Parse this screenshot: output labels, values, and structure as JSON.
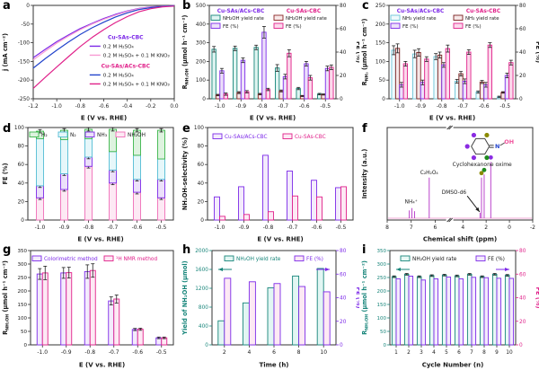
{
  "panel_labels": [
    "a",
    "b",
    "c",
    "d",
    "e",
    "f",
    "g",
    "h",
    "i"
  ],
  "colors": {
    "purple": "#7d2ae8",
    "magenta": "#e0218a",
    "teal": "#17857a",
    "maroon": "#8b2525",
    "blue": "#2244cc",
    "light_pink": "#f79ad3",
    "cyan": "#52bcd4",
    "green": "#3bb54a",
    "pink_bar": "#f06eb8",
    "spectrum_line": "#bb44cc",
    "baseline_pink": "#f2a7d6",
    "dot_olive": "#8a8a00",
    "dot_green": "#1e8a1e",
    "dot_purple": "#8a2be2",
    "oh_pink": "#f0529c"
  },
  "chart_data": [
    {
      "panel": "a",
      "type": "line",
      "xlabel": "E (V vs. RHE)",
      "ylabel": "j (mA cm⁻²)",
      "xlim": [
        -1.2,
        0
      ],
      "ylim": [
        -250,
        0
      ],
      "xticks": [
        -1.2,
        -1.0,
        -0.8,
        -0.6,
        -0.4,
        -0.2,
        0.0
      ],
      "yticks": [
        0,
        -50,
        -100,
        -150,
        -200,
        -250
      ],
      "x_start": -1.2,
      "x_step": 0.1,
      "legend": [
        {
          "title": "Cu-SAs-CBC",
          "title_color": "#7d2ae8",
          "items": [
            {
              "label": "0.2 M H₂SO₄",
              "color": "#7d2ae8"
            },
            {
              "label": "0.2 M H₂SO₄ + 0.1 M KNO₃",
              "color": "#f79ad3"
            }
          ]
        },
        {
          "title": "Cu-SAs/ACs-CBC",
          "title_color": "#e0218a",
          "items": [
            {
              "label": "0.2 M H₂SO₄",
              "color": "#2244cc"
            },
            {
              "label": "0.2 M H₂SO₄ + 0.1 M KNO₃",
              "color": "#e0218a"
            }
          ]
        }
      ],
      "series": [
        {
          "name": "Cu-SAs-CBC 0.2 M H₂SO₄",
          "color": "#7d2ae8",
          "values": [
            -140,
            -118,
            -97,
            -79,
            -62,
            -48,
            -35,
            -24,
            -15,
            -8,
            -4,
            -2,
            -1
          ]
        },
        {
          "name": "Cu-SAs-CBC 0.2 M H₂SO₄ + 0.1 M KNO₃",
          "color": "#f79ad3",
          "values": [
            -146,
            -123,
            -101,
            -82,
            -65,
            -50,
            -37,
            -26,
            -16,
            -9,
            -5,
            -2,
            -1
          ]
        },
        {
          "name": "Cu-SAs/ACs-CBC 0.2 M H₂SO₄",
          "color": "#2244cc",
          "values": [
            -168,
            -143,
            -120,
            -98,
            -78,
            -60,
            -45,
            -31,
            -20,
            -11,
            -6,
            -3,
            -1
          ]
        },
        {
          "name": "Cu-SAs/ACs-CBC 0.2 M H₂SO₄ + 0.1 M KNO₃",
          "color": "#e0218a",
          "values": [
            -222,
            -193,
            -165,
            -137,
            -110,
            -86,
            -65,
            -46,
            -30,
            -17,
            -9,
            -4,
            -2
          ]
        }
      ]
    },
    {
      "panel": "b",
      "type": "bars",
      "xlabel": "E (V vs. RHE)",
      "ylabel": "R{NH₂OH} (µmol h⁻¹ cm⁻²)",
      "y2label": "FE (%)",
      "ylim": [
        0,
        500
      ],
      "yticks": [
        0,
        100,
        200,
        300,
        400,
        500
      ],
      "y2lim": [
        0,
        80
      ],
      "y2ticks": [
        0,
        20,
        40,
        60,
        80
      ],
      "categories": [
        "-1.0",
        "-0.9",
        "-0.8",
        "-0.7",
        "-0.6",
        "-0.5"
      ],
      "legend_cols": [
        {
          "title": "Cu-SAs/ACs-CBC",
          "title_color": "#7d2ae8",
          "items": [
            {
              "label": "NH₂OH yield rate",
              "stroke": "#17857a",
              "fill": "#dff4f1"
            },
            {
              "label": "FE (%)",
              "stroke": "#7d2ae8",
              "fill": "#ece0fa"
            }
          ]
        },
        {
          "title": "Cu-SAs-CBC",
          "title_color": "#e0218a",
          "items": [
            {
              "label": "NH₂OH yield rate",
              "stroke": "#8b2525",
              "fill": "#f8e8e8"
            },
            {
              "label": "FE (%)",
              "stroke": "#e0218a",
              "fill": "#fcd9ec"
            }
          ]
        }
      ],
      "series": [
        {
          "name": "Cu-SAs/ACs-CBC NH₂OH yield rate",
          "axis": "left",
          "stroke": "#17857a",
          "fill": "#dff4f1",
          "values": [
            265,
            270,
            275,
            165,
            55,
            25
          ],
          "errors": [
            15,
            12,
            12,
            18,
            6,
            4
          ]
        },
        {
          "name": "Cu-SAs-CBC NH₂OH yield rate",
          "axis": "left",
          "stroke": "#8b2525",
          "fill": "#f8e8e8",
          "values": [
            20,
            33,
            25,
            42,
            15,
            23
          ],
          "errors": [
            4,
            5,
            4,
            5,
            3,
            3
          ]
        },
        {
          "name": "Cu-SAs/ACs-CBC FE (%)",
          "axis": "right",
          "stroke": "#7d2ae8",
          "fill": "#ece0fa",
          "values": [
            24,
            33,
            57,
            19,
            30,
            26
          ],
          "errors": [
            2,
            2,
            5,
            2,
            2,
            2
          ]
        },
        {
          "name": "Cu-SAs-CBC FE (%)",
          "axis": "right",
          "stroke": "#e0218a",
          "fill": "#fcd9ec",
          "values": [
            4,
            6,
            8,
            39,
            18,
            27
          ],
          "errors": [
            1,
            1,
            1,
            3,
            2,
            2
          ]
        }
      ]
    },
    {
      "panel": "c",
      "type": "bars",
      "xlabel": "E (V vs. RHE)",
      "ylabel": "R{NH₃} (µmol h⁻¹ cm⁻²)",
      "y2label": "FE (%)",
      "ylim": [
        0,
        250
      ],
      "yticks": [
        0,
        50,
        100,
        150,
        200,
        250
      ],
      "y2lim": [
        0,
        80
      ],
      "y2ticks": [
        0,
        20,
        40,
        60,
        80
      ],
      "categories": [
        "-1.0",
        "-0.9",
        "-0.8",
        "-0.7",
        "-0.6",
        "-0.5"
      ],
      "legend_cols": [
        {
          "title": "Cu-SAs/ACs-CBC",
          "title_color": "#7d2ae8",
          "items": [
            {
              "label": "NH₃ yield rate",
              "stroke": "#6cc5d8",
              "fill": "#f0fafc"
            },
            {
              "label": "FE (%)",
              "stroke": "#7d2ae8",
              "fill": "#ece0fa"
            }
          ]
        },
        {
          "title": "Cu-SAs-CBC",
          "title_color": "#e0218a",
          "items": [
            {
              "label": "NH₃ yield rate",
              "stroke": "#7a1f1f",
              "fill": "#f6e7e7"
            },
            {
              "label": "FE (%)",
              "stroke": "#e0218a",
              "fill": "#fcd9ec"
            }
          ]
        }
      ],
      "series": [
        {
          "name": "Cu-SAs/ACs-CBC NH₃ yield rate",
          "axis": "left",
          "stroke": "#6cc5d8",
          "fill": "#f0fafc",
          "values": [
            130,
            120,
            113,
            47,
            18,
            5
          ],
          "errors": [
            12,
            10,
            8,
            5,
            3,
            2
          ]
        },
        {
          "name": "Cu-SAs-CBC NH₃ yield rate",
          "axis": "left",
          "stroke": "#7a1f1f",
          "fill": "#f6e7e7",
          "values": [
            135,
            124,
            117,
            67,
            45,
            17
          ],
          "errors": [
            12,
            10,
            8,
            6,
            4,
            2
          ]
        },
        {
          "name": "Cu-SAs/ACs-CBC FE (%)",
          "axis": "right",
          "stroke": "#7d2ae8",
          "fill": "#ece0fa",
          "values": [
            12,
            14,
            29,
            15,
            12,
            20
          ],
          "errors": [
            2,
            2,
            2,
            2,
            2,
            2
          ]
        },
        {
          "name": "Cu-SAs-CBC FE (%)",
          "axis": "right",
          "stroke": "#e0218a",
          "fill": "#fcd9ec",
          "values": [
            30,
            34,
            43,
            40,
            46,
            31
          ],
          "errors": [
            2,
            2,
            3,
            2,
            2,
            2
          ]
        }
      ]
    },
    {
      "panel": "d",
      "type": "stacked",
      "xlabel": "E (V vs. RHE)",
      "ylabel": "FE (%)",
      "ylim": [
        0,
        100
      ],
      "yticks": [
        0,
        20,
        40,
        60,
        80,
        100
      ],
      "categories": [
        "-1.0",
        "-0.9",
        "-0.8",
        "-0.7",
        "-0.6",
        "-0.5"
      ],
      "legend_row": [
        {
          "label": "H₂",
          "stroke": "#3bb54a",
          "fill": "#def3df"
        },
        {
          "label": "N₂",
          "stroke": "#52bcd4",
          "fill": "#e6f7fa"
        },
        {
          "label": "NH₃",
          "stroke": "#7d2ae8",
          "fill": "#ece0fa"
        },
        {
          "label": "NH₂OH",
          "stroke": "#f06eb8",
          "fill": "#fde9f4"
        }
      ],
      "series": [
        {
          "name": "NH₂OH",
          "stroke": "#f06eb8",
          "fill": "#fde9f4",
          "values": [
            24,
            33,
            58,
            40,
            30,
            24
          ]
        },
        {
          "name": "NH₃",
          "stroke": "#7d2ae8",
          "fill": "#ece0fa",
          "values": [
            13,
            17,
            10,
            14,
            14,
            20
          ]
        },
        {
          "name": "N₂",
          "stroke": "#52bcd4",
          "fill": "#e6f7fa",
          "values": [
            51,
            37,
            20,
            20,
            26,
            22
          ]
        },
        {
          "name": "H₂",
          "stroke": "#3bb54a",
          "fill": "#def3df",
          "values": [
            8,
            10,
            10,
            24,
            27,
            31
          ]
        }
      ]
    },
    {
      "panel": "e",
      "type": "bars",
      "xlabel": "E (V vs. RHE)",
      "ylabel": "NH₂OH-selectivity (%)",
      "ylim": [
        0,
        100
      ],
      "yticks": [
        0,
        20,
        40,
        60,
        80,
        100
      ],
      "categories": [
        "-1.0",
        "-0.9",
        "-0.8",
        "-0.7",
        "-0.6",
        "-0.5"
      ],
      "legend_row": [
        {
          "label": "Cu-SAs/ACs-CBC",
          "stroke": "#7d2ae8",
          "fill": "#f3ebfc",
          "label_color": "#7d2ae8"
        },
        {
          "label": "Cu-SAs-CBC",
          "stroke": "#e0218a",
          "fill": "#fde9f4",
          "label_color": "#e0218a"
        }
      ],
      "series": [
        {
          "name": "Cu-SAs/ACs-CBC",
          "axis": "left",
          "stroke": "#7d2ae8",
          "fill": "#f3ebfc",
          "values": [
            25,
            36,
            70,
            53,
            43,
            35
          ]
        },
        {
          "name": "Cu-SAs-CBC",
          "axis": "left",
          "stroke": "#e0218a",
          "fill": "#fde9f4",
          "values": [
            4,
            6,
            9,
            26,
            25,
            36
          ]
        }
      ]
    },
    {
      "panel": "f",
      "type": "spectrum",
      "xlabel": "Chemical shift (ppm)",
      "ylabel": "Intensity (a.u.)",
      "xticks": [
        8,
        7,
        6,
        4,
        2,
        0,
        -2
      ],
      "x_map": [
        [
          8,
          0
        ],
        [
          6,
          0.33
        ],
        [
          4,
          0.52
        ],
        [
          -2,
          1.0
        ]
      ],
      "break_frac": 0.43,
      "line_color": "#bb44cc",
      "baseline_color": "#f2a7d6",
      "peaks": [
        {
          "ppm": 7.08,
          "h": 0.1
        },
        {
          "ppm": 6.97,
          "h": 0.13
        },
        {
          "ppm": 6.86,
          "h": 0.09
        },
        {
          "ppm": 6.25,
          "h": 0.52
        },
        {
          "ppm": 2.52,
          "h": 0.07
        },
        {
          "ppm": 2.4,
          "h": 0.52,
          "dot": "#8a8a00"
        },
        {
          "ppm": 2.17,
          "h": 0.56,
          "dot": "#1e8a1e"
        },
        {
          "ppm": 1.6,
          "h": 0.72,
          "dot": "#8a2be2"
        }
      ],
      "annotations": {
        "nh4": "NH₄⁺",
        "oxalic": "C₂H₂O₄",
        "dmso": "DMSO-d6",
        "molecule_caption": "Cyclohexanone oxime"
      },
      "molecule": {
        "ring_dots": [
          "#8a2be2",
          "#8a8a00",
          "#1e8a1e",
          "#8a2be2",
          "#8a2be2"
        ],
        "n_label": "N",
        "n_color": "#2244cc",
        "oh_label": "OH",
        "oh_color": "#f0529c"
      }
    },
    {
      "panel": "g",
      "type": "bars",
      "xlabel": "E (V vs. RHE)",
      "ylabel": "R{NH₂OH} (µmol h⁻¹ cm⁻²)",
      "ylim": [
        0,
        350
      ],
      "yticks": [
        0,
        50,
        100,
        150,
        200,
        250,
        300,
        350
      ],
      "categories": [
        "-1.0",
        "-0.9",
        "-0.8",
        "-0.7",
        "-0.6",
        "-0.5"
      ],
      "legend_row": [
        {
          "label": "Colorimetric method",
          "stroke": "#7d2ae8",
          "fill": "#f3ebfc",
          "label_color": "#7d2ae8"
        },
        {
          "label": "¹H NMR method",
          "stroke": "#e0218a",
          "fill": "#fde9f4",
          "label_color": "#e0218a"
        }
      ],
      "series": [
        {
          "name": "Colorimetric method",
          "axis": "left",
          "stroke": "#7d2ae8",
          "fill": "#f3ebfc",
          "values": [
            263,
            267,
            272,
            163,
            57,
            26
          ],
          "errors": [
            20,
            20,
            25,
            15,
            4,
            3
          ]
        },
        {
          "name": "¹H NMR method",
          "axis": "left",
          "stroke": "#e0218a",
          "fill": "#fde9f4",
          "values": [
            267,
            268,
            276,
            170,
            58,
            26
          ],
          "errors": [
            25,
            20,
            25,
            15,
            4,
            3
          ]
        }
      ]
    },
    {
      "panel": "h",
      "type": "bars",
      "xlabel": "Time (h)",
      "ylabel": "Yield of NH₂OH (µmol)",
      "y2label": "FE (%)",
      "ylabel_color": "#17857a",
      "y2label_color": "#7d2ae8",
      "ylim": [
        0,
        2000
      ],
      "yticks": [
        0,
        400,
        800,
        1200,
        1600,
        2000
      ],
      "y2lim": [
        0,
        80
      ],
      "y2ticks": [
        0,
        20,
        40,
        60,
        80
      ],
      "categories": [
        "2",
        "4",
        "6",
        "8",
        "10"
      ],
      "arrows": {
        "left_color": "#17857a",
        "right_color": "#7d2ae8"
      },
      "legend_row": [
        {
          "label": "NH₂OH yield rate",
          "stroke": "#17857a",
          "fill": "#e2f6f3",
          "label_color": "#17857a"
        },
        {
          "label": "FE (%)",
          "stroke": "#7d2ae8",
          "fill": "#fde9f4",
          "label_color": "#7d2ae8"
        }
      ],
      "series": [
        {
          "name": "NH₂OH yield rate",
          "axis": "left",
          "stroke": "#17857a",
          "fill": "#e2f6f3",
          "values": [
            510,
            890,
            1210,
            1460,
            1620
          ]
        },
        {
          "name": "FE (%)",
          "axis": "right",
          "stroke": "#7d2ae8",
          "fill": "#fde9f4",
          "values": [
            56.5,
            53.5,
            52,
            49.5,
            45
          ]
        }
      ]
    },
    {
      "panel": "i",
      "type": "bars",
      "xlabel": "Cycle Number (n)",
      "ylabel": "R{NH₂OH} (µmol h⁻¹ cm⁻²)",
      "y2label": "FE (%)",
      "ylabel_color": "#17857a",
      "y2label_color": "#e0218a",
      "ylim": [
        0,
        350
      ],
      "yticks": [
        0,
        50,
        100,
        150,
        200,
        250,
        300,
        350
      ],
      "y2lim": [
        0,
        80
      ],
      "y2ticks": [
        0,
        20,
        40,
        60,
        80
      ],
      "categories": [
        "1",
        "2",
        "3",
        "4",
        "5",
        "6",
        "7",
        "8",
        "9",
        "10"
      ],
      "arrows": {
        "left_color": "#17857a",
        "right_color": "#7d2ae8"
      },
      "legend_row": [
        {
          "label": "NH₂OH yield rate",
          "stroke": "#17857a",
          "fill": "#e8f8f5",
          "label_color": "#1a1a1a"
        },
        {
          "label": "FE (%)",
          "stroke": "#7d2ae8",
          "fill": "#f3ebfc",
          "label_color": "#1a1a1a"
        }
      ],
      "series": [
        {
          "name": "NH₂OH yield rate",
          "axis": "left",
          "stroke": "#17857a",
          "fill": "#e8f8f5",
          "values": [
            253,
            262,
            253,
            257,
            259,
            256,
            262,
            253,
            262,
            258
          ],
          "errors": [
            3,
            3,
            3,
            3,
            3,
            3,
            3,
            3,
            3,
            3
          ]
        },
        {
          "name": "FE (%)",
          "axis": "right",
          "stroke": "#7d2ae8",
          "fill": "#f3ebfc",
          "values": [
            56,
            58.3,
            55,
            56,
            57.5,
            56,
            57.3,
            57,
            56.5,
            56.4
          ]
        }
      ]
    }
  ]
}
